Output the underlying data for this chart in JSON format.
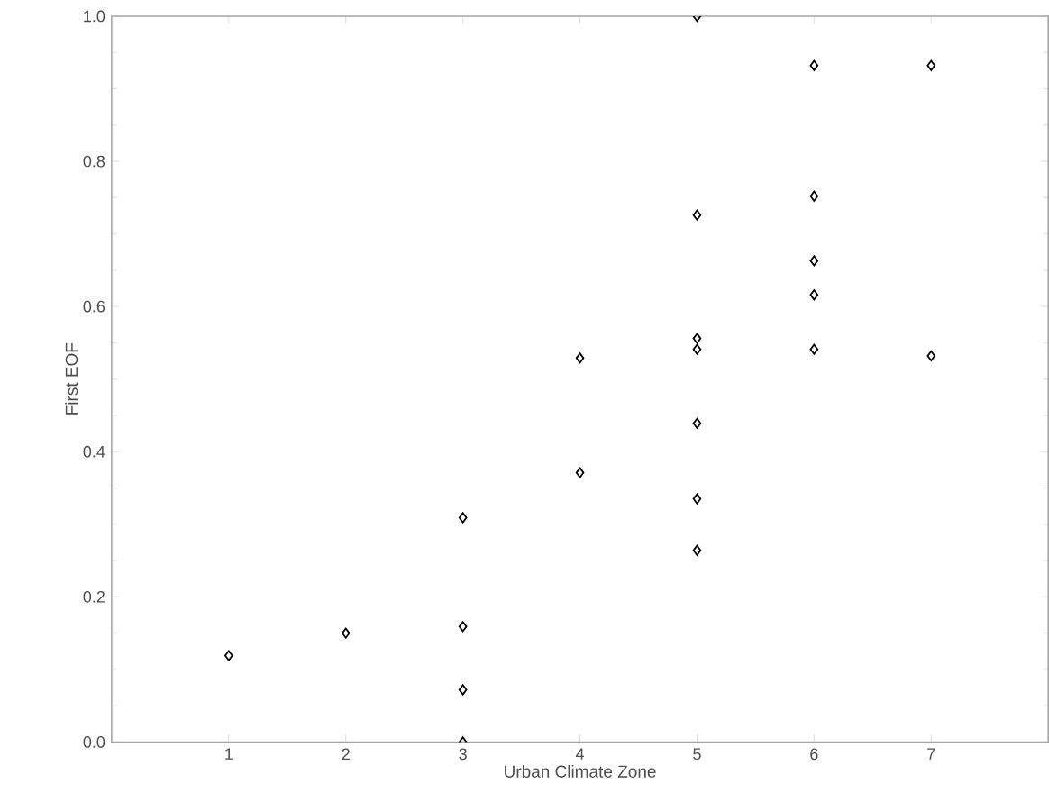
{
  "chart_data": {
    "type": "scatter",
    "xlabel": "Urban Climate Zone",
    "ylabel": "First EOF",
    "xlim": [
      0,
      8
    ],
    "ylim": [
      0,
      1
    ],
    "xticks": [
      1,
      2,
      3,
      4,
      5,
      6,
      7
    ],
    "yticks": [
      {
        "value": 0,
        "label": "0.0"
      },
      {
        "value": 0.2,
        "label": "0.2"
      },
      {
        "value": 0.4,
        "label": "0.4"
      },
      {
        "value": 0.6,
        "label": "0.6"
      },
      {
        "value": 0.8,
        "label": "0.8"
      },
      {
        "value": 1,
        "label": "1.0"
      }
    ],
    "grid": false,
    "marker": "diamond",
    "series": [
      {
        "color": "#000000",
        "x": [
          1,
          2,
          3,
          3,
          3,
          3,
          4,
          4,
          5,
          5,
          5,
          5,
          5,
          5,
          5,
          6,
          6,
          6,
          6,
          6,
          7,
          7
        ],
        "values": [
          0.119,
          0.15,
          0.309,
          0.159,
          0.072,
          0,
          0.529,
          0.371,
          0.726,
          0.556,
          0.541,
          0.439,
          0.335,
          0.264,
          1.0,
          0.932,
          0.752,
          0.663,
          0.616,
          0.541,
          0.932,
          0.532
        ]
      }
    ]
  }
}
